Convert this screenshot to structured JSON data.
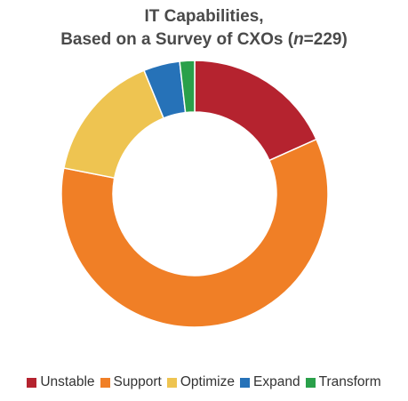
{
  "chart_data": {
    "type": "pie",
    "title_line1": "IT Capabilities,",
    "title_line2_prefix": "Based on a Survey of CXOs (",
    "title_n_symbol": "n",
    "title_line2_suffix": "=229)",
    "donut": true,
    "categories": [
      "Unstable",
      "Support",
      "Optimize",
      "Expand",
      "Transform"
    ],
    "values": [
      18.3,
      59.8,
      15.7,
      4.4,
      1.8
    ],
    "colors": [
      "#b5232f",
      "#f07f26",
      "#eec451",
      "#2672b8",
      "#2aa04a"
    ],
    "legend_position": "bottom"
  }
}
